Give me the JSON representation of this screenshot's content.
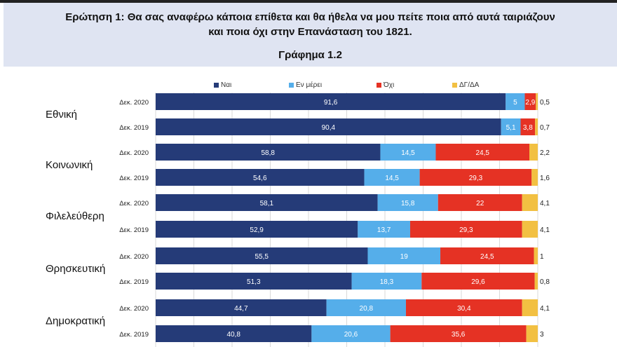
{
  "chart_data": {
    "type": "bar",
    "orientation": "horizontal-stacked-100",
    "title": "Ερώτηση 1: Θα σας αναφέρω κάποια επίθετα και θα ήθελα να μου πείτε ποια από αυτά ταιριάζουν\nκαι ποια όχι στην Επανάσταση του 1821.",
    "subtitle": "Γράφημα 1.2",
    "xlim": [
      0,
      100
    ],
    "grid": true,
    "legend_position": "top",
    "series": [
      {
        "name": "Ναι",
        "color": "#253b78"
      },
      {
        "name": "Εν μέρει",
        "color": "#55aeea"
      },
      {
        "name": "Όχι",
        "color": "#e53224"
      },
      {
        "name": "ΔΓ/ΔΑ",
        "color": "#f2c042"
      }
    ],
    "groups": [
      {
        "category": "Εθνική",
        "rows": [
          {
            "label": "Δεκ. 2020",
            "values": [
              91.6,
              5,
              2.9,
              0.5
            ]
          },
          {
            "label": "Δεκ. 2019",
            "values": [
              90.4,
              5.1,
              3.8,
              0.7
            ]
          }
        ]
      },
      {
        "category": "Κοινωνική",
        "rows": [
          {
            "label": "Δεκ. 2020",
            "values": [
              58.8,
              14.5,
              24.5,
              2.2
            ]
          },
          {
            "label": "Δεκ. 2019",
            "values": [
              54.6,
              14.5,
              29.3,
              1.6
            ]
          }
        ]
      },
      {
        "category": "Φιλελεύθερη",
        "rows": [
          {
            "label": "Δεκ. 2020",
            "values": [
              58.1,
              15.8,
              22,
              4.1
            ]
          },
          {
            "label": "Δεκ. 2019",
            "values": [
              52.9,
              13.7,
              29.3,
              4.1
            ]
          }
        ]
      },
      {
        "category": "Θρησκευτική",
        "rows": [
          {
            "label": "Δεκ. 2020",
            "values": [
              55.5,
              19,
              24.5,
              1
            ]
          },
          {
            "label": "Δεκ. 2019",
            "values": [
              51.3,
              18.3,
              29.6,
              0.8
            ]
          }
        ]
      },
      {
        "category": "Δημοκρατική",
        "rows": [
          {
            "label": "Δεκ. 2020",
            "values": [
              44.7,
              20.8,
              30.4,
              4.1
            ]
          },
          {
            "label": "Δεκ. 2019",
            "values": [
              40.8,
              20.6,
              35.6,
              3
            ]
          }
        ]
      }
    ]
  }
}
